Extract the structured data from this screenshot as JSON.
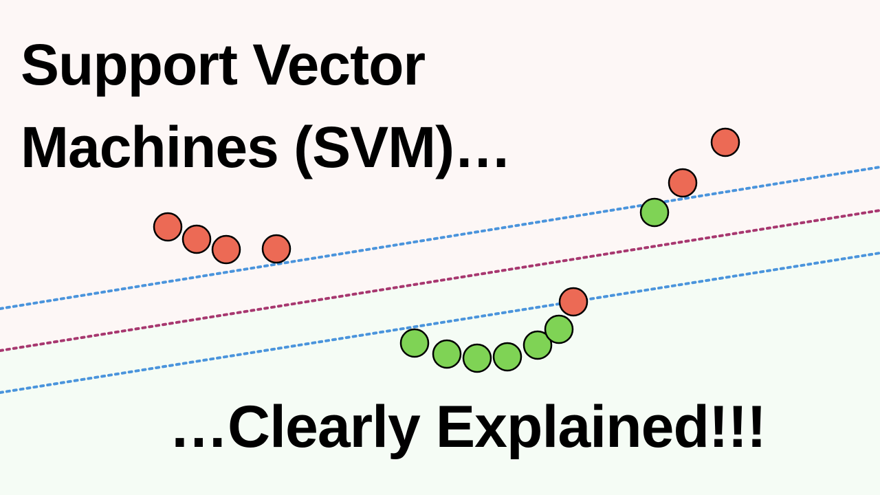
{
  "title": {
    "line1": "Support Vector",
    "line2": "Machines (SVM)…"
  },
  "subtitle": "…Clearly Explained!!!",
  "colors": {
    "background_top": "#fdf7f6",
    "background_bottom": "#f5fcf5",
    "class_red": "#ec6a55",
    "class_green": "#7fd355",
    "margin_line": "#4a94dc",
    "decision_line": "#a7376f",
    "point_outline": "#000000"
  },
  "legend": {
    "red_points": "red-class",
    "green_points": "green-class"
  }
}
